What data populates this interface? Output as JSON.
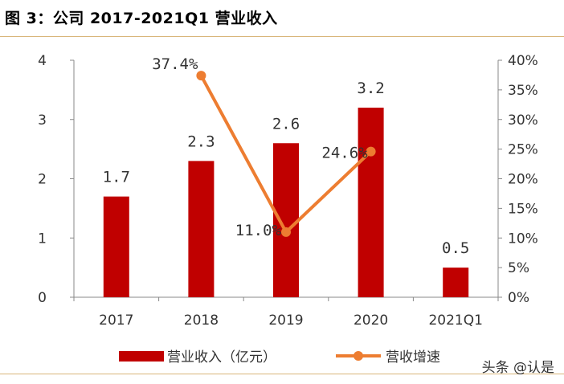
{
  "title": "图 3：公司 2017-2021Q1 营业收入",
  "watermark": "头条 @认是",
  "colors": {
    "bar": "#c00000",
    "line": "#ed7d31",
    "rule": "#d9b57a"
  },
  "chart_data": {
    "type": "bar",
    "categories": [
      "2017",
      "2018",
      "2019",
      "2020",
      "2021Q1"
    ],
    "series": [
      {
        "name": "营业收入（亿元）",
        "type": "bar",
        "axis": "left",
        "values": [
          1.7,
          2.3,
          2.6,
          3.2,
          0.5
        ],
        "labels": [
          "1.7",
          "2.3",
          "2.6",
          "3.2",
          "0.5"
        ]
      },
      {
        "name": "营收增速",
        "type": "line",
        "axis": "right",
        "values": [
          null,
          37.4,
          11.0,
          24.6,
          null
        ],
        "labels": [
          "",
          "37.4%",
          "11.0%",
          "24.6%",
          ""
        ]
      }
    ],
    "y_left": {
      "ylim": [
        0,
        4
      ],
      "ticks": [
        "0",
        "1",
        "2",
        "3",
        "4"
      ]
    },
    "y_right": {
      "ylim": [
        0,
        40
      ],
      "ticks": [
        "0%",
        "5%",
        "10%",
        "15%",
        "20%",
        "25%",
        "30%",
        "35%",
        "40%"
      ]
    },
    "legend": "bottom"
  }
}
